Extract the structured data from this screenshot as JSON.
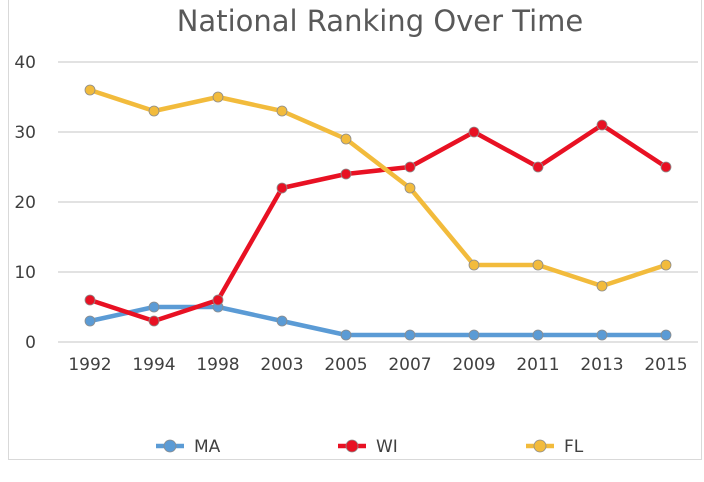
{
  "chart_data": {
    "type": "line",
    "title": "National Ranking Over Time",
    "categories": [
      "1992",
      "1994",
      "1998",
      "2003",
      "2005",
      "2007",
      "2009",
      "2011",
      "2013",
      "2015"
    ],
    "series": [
      {
        "name": "MA",
        "color": "#5b9bd5",
        "values": [
          3,
          5,
          5,
          3,
          1,
          1,
          1,
          1,
          1,
          1
        ]
      },
      {
        "name": "WI",
        "color": "#e81123",
        "values": [
          6,
          3,
          6,
          22,
          24,
          25,
          30,
          25,
          31,
          25
        ]
      },
      {
        "name": "FL",
        "color": "#f2bb3c",
        "values": [
          36,
          33,
          35,
          33,
          29,
          22,
          11,
          11,
          8,
          11
        ]
      }
    ],
    "y_ticks": [
      "0",
      "10",
      "20",
      "30",
      "40"
    ],
    "ylim": [
      0,
      40
    ],
    "grid": true,
    "legend_position": "bottom"
  }
}
